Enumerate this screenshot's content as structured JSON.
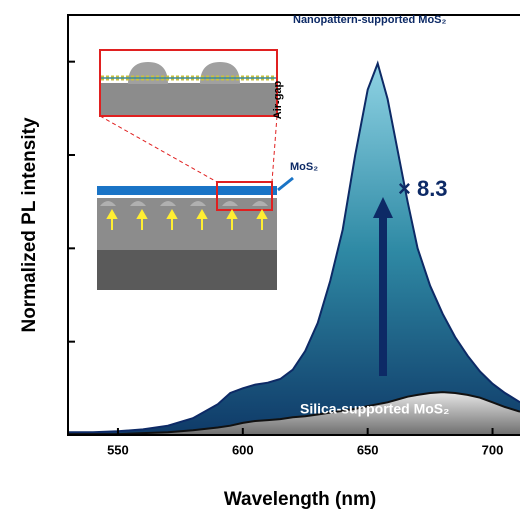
{
  "chart_data": {
    "type": "area",
    "x_label": "Wavelength (nm)",
    "y_label": "Normalized PL intensity",
    "x": [
      530,
      540,
      550,
      560,
      570,
      580,
      590,
      595,
      600,
      605,
      610,
      615,
      620,
      625,
      630,
      635,
      640,
      645,
      650,
      654,
      658,
      662,
      666,
      670,
      675,
      680,
      685,
      690,
      695,
      700,
      705,
      711
    ],
    "series": [
      {
        "name": "Nanopattern-supported MoS₂",
        "color": "#2f8aa5",
        "values": [
          0.03,
          0.03,
          0.04,
          0.06,
          0.1,
          0.18,
          0.33,
          0.45,
          0.5,
          0.54,
          0.56,
          0.6,
          0.7,
          0.9,
          1.2,
          1.65,
          2.2,
          3.0,
          3.7,
          3.98,
          3.6,
          3.05,
          2.5,
          2.0,
          1.6,
          1.3,
          1.05,
          0.85,
          0.68,
          0.55,
          0.45,
          0.35
        ]
      },
      {
        "name": "Silica-supported MoS₂",
        "color": "#8a8a8a",
        "values": [
          0.01,
          0.01,
          0.01,
          0.02,
          0.03,
          0.05,
          0.08,
          0.1,
          0.13,
          0.15,
          0.16,
          0.17,
          0.19,
          0.2,
          0.22,
          0.24,
          0.26,
          0.28,
          0.31,
          0.33,
          0.35,
          0.38,
          0.41,
          0.43,
          0.45,
          0.46,
          0.45,
          0.43,
          0.4,
          0.35,
          0.3,
          0.25
        ]
      }
    ],
    "annotations": [
      "× 8.3",
      "MoS₂",
      "Air-gap"
    ],
    "xlim": [
      530,
      711
    ],
    "ylim": [
      0,
      4.5
    ],
    "xticks": [
      550,
      600,
      650,
      700
    ],
    "yticks": [
      0,
      1,
      2,
      3,
      4
    ]
  }
}
